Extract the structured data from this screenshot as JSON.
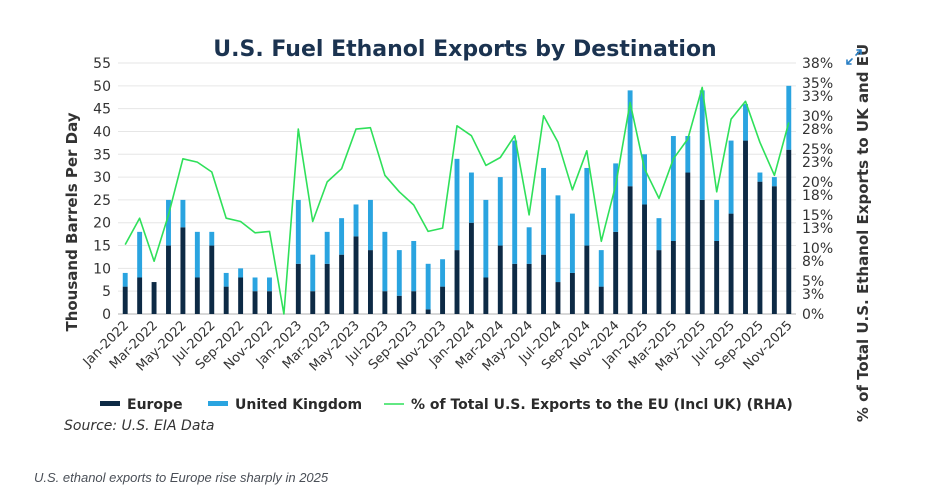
{
  "caption": "U.S. ethanol exports to Europe rise sharply in 2025",
  "expand_icon": "expand-icon",
  "chart_data": {
    "type": "bar",
    "title": "U.S. Fuel Ethanol Exports by Destination",
    "ylabel": "Thousand Barrels Per Day",
    "y2label": "% of Total U.S. Ethanol Exports to UK and EU",
    "source": "Source: U.S. EIA Data",
    "ylim": [
      0,
      55
    ],
    "yticks": [
      "0",
      "5",
      "10",
      "15",
      "20",
      "25",
      "30",
      "35",
      "40",
      "45",
      "50",
      "55"
    ],
    "y2lim": [
      0,
      38
    ],
    "y2ticks": [
      "0%",
      "3%",
      "5%",
      "8%",
      "10%",
      "13%",
      "15%",
      "18%",
      "20%",
      "23%",
      "25%",
      "28%",
      "30%",
      "33%",
      "35%",
      "38%"
    ],
    "x_tick_labels": [
      "Jan-2022",
      "Mar-2022",
      "May-2022",
      "Jul-2022",
      "Sep-2022",
      "Nov-2022",
      "Jan-2023",
      "Mar-2023",
      "May-2023",
      "Jul-2023",
      "Sep-2023",
      "Nov-2023",
      "Jan-2024",
      "Mar-2024",
      "May-2024",
      "Jul-2024",
      "Sep-2024",
      "Nov-2024",
      "Jan-2025",
      "Mar-2025",
      "May-2025",
      "Jul-2025",
      "Sep-2025",
      "Nov-2025"
    ],
    "categories": [
      "Jan-2022",
      "Feb-2022",
      "Mar-2022",
      "Apr-2022",
      "May-2022",
      "Jun-2022",
      "Jul-2022",
      "Aug-2022",
      "Sep-2022",
      "Oct-2022",
      "Nov-2022",
      "Dec-2022",
      "Jan-2023",
      "Feb-2023",
      "Mar-2023",
      "Apr-2023",
      "May-2023",
      "Jun-2023",
      "Jul-2023",
      "Aug-2023",
      "Sep-2023",
      "Oct-2023",
      "Nov-2023",
      "Dec-2023",
      "Jan-2024",
      "Feb-2024",
      "Mar-2024",
      "Apr-2024",
      "May-2024",
      "Jun-2024",
      "Jul-2024",
      "Aug-2024",
      "Sep-2024",
      "Oct-2024",
      "Nov-2024",
      "Dec-2024",
      "Jan-2025",
      "Feb-2025",
      "Mar-2025",
      "Apr-2025",
      "May-2025",
      "Jun-2025",
      "Jul-2025",
      "Aug-2025",
      "Sep-2025",
      "Oct-2025",
      "Nov-2025"
    ],
    "series": [
      {
        "name": "Europe",
        "color": "#0d2a45",
        "values": [
          6,
          8,
          7,
          15,
          19,
          8,
          15,
          6,
          8,
          5,
          5,
          0,
          11,
          5,
          11,
          13,
          17,
          14,
          5,
          4,
          5,
          1,
          6,
          14,
          20,
          8,
          15,
          11,
          11,
          13,
          7,
          9,
          15,
          6,
          18,
          28,
          24,
          14,
          16,
          31,
          25,
          16,
          22,
          38,
          29,
          28,
          36
        ]
      },
      {
        "name": "United Kingdom",
        "color": "#2aa4e0",
        "values": [
          3,
          10,
          0,
          10,
          6,
          10,
          3,
          3,
          2,
          3,
          3,
          0,
          14,
          8,
          7,
          8,
          7,
          11,
          13,
          10,
          11,
          10,
          6,
          20,
          11,
          17,
          15,
          27,
          8,
          19,
          19,
          13,
          17,
          8,
          15,
          21,
          11,
          7,
          23,
          8,
          24,
          9,
          16,
          8,
          2,
          2,
          14
        ]
      },
      {
        "name": "% of Total U.S. Exports to the EU (Incl UK) (RHA)",
        "axis": "right",
        "color": "#2fe05a",
        "values": [
          10.5,
          14.5,
          8,
          15,
          23.5,
          23,
          21.5,
          14.5,
          14,
          12.3,
          12.5,
          0,
          28,
          14,
          20,
          22,
          28,
          28.2,
          21,
          18.5,
          16.5,
          12.5,
          13,
          28.5,
          27,
          22.5,
          23.7,
          27,
          15,
          30,
          26,
          18.8,
          24.7,
          11,
          19.5,
          32,
          22,
          17.5,
          23.5,
          26.5,
          34.3,
          18.5,
          29.5,
          32.2,
          26,
          21,
          29
        ]
      }
    ],
    "legend": [
      {
        "label": "Europe",
        "kind": "bar",
        "color": "#0d2a45"
      },
      {
        "label": "United Kingdom",
        "kind": "bar",
        "color": "#2aa4e0"
      },
      {
        "label": "% of Total U.S. Exports to the EU (Incl UK) (RHA)",
        "kind": "line",
        "color": "#2fe05a"
      }
    ],
    "grid": true,
    "legend_position": "bottom"
  }
}
